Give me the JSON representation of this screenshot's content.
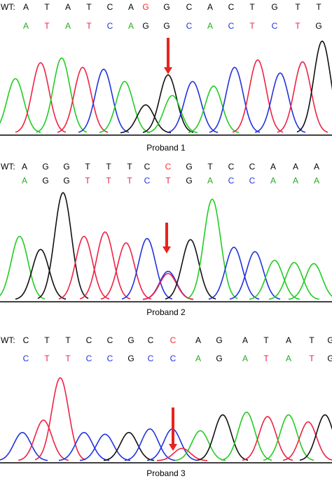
{
  "panels": [
    {
      "caption": "Proband 1",
      "wt_label": "WT:",
      "wt_bases": [
        {
          "b": "A",
          "c": "#000000"
        },
        {
          "b": "T",
          "c": "#000000"
        },
        {
          "b": "A",
          "c": "#000000"
        },
        {
          "b": "T",
          "c": "#000000"
        },
        {
          "b": "C",
          "c": "#000000"
        },
        {
          "b": "A",
          "c": "#000000"
        },
        {
          "b": "G",
          "c": "#ff2a2a"
        },
        {
          "b": "G",
          "c": "#000000"
        },
        {
          "b": "C",
          "c": "#000000"
        },
        {
          "b": "A",
          "c": "#000000"
        },
        {
          "b": "C",
          "c": "#000000"
        },
        {
          "b": "T",
          "c": "#000000"
        },
        {
          "b": "G",
          "c": "#000000"
        },
        {
          "b": "T",
          "c": "#000000"
        },
        {
          "b": "T",
          "c": "#000000"
        }
      ],
      "called_bases": [
        {
          "b": "A",
          "c": "#22aa22"
        },
        {
          "b": "T",
          "c": "#e8224a"
        },
        {
          "b": "A",
          "c": "#22aa22"
        },
        {
          "b": "T",
          "c": "#e8224a"
        },
        {
          "b": "C",
          "c": "#2233dd"
        },
        {
          "b": "A",
          "c": "#22aa22"
        },
        {
          "b": "G",
          "c": "#000000"
        },
        {
          "b": "G",
          "c": "#000000"
        },
        {
          "b": "C",
          "c": "#2233dd"
        },
        {
          "b": "A",
          "c": "#22aa22"
        },
        {
          "b": "C",
          "c": "#2233dd"
        },
        {
          "b": "T",
          "c": "#e8224a"
        },
        {
          "b": "C",
          "c": "#2233dd"
        },
        {
          "b": "T",
          "c": "#e8224a"
        },
        {
          "b": "G",
          "c": "#000000"
        }
      ]
    },
    {
      "caption": "Proband 2",
      "wt_label": "WT:",
      "wt_bases": [
        {
          "b": "A",
          "c": "#000000"
        },
        {
          "b": "G",
          "c": "#000000"
        },
        {
          "b": "G",
          "c": "#000000"
        },
        {
          "b": "T",
          "c": "#000000"
        },
        {
          "b": "T",
          "c": "#000000"
        },
        {
          "b": "T",
          "c": "#000000"
        },
        {
          "b": "C",
          "c": "#000000"
        },
        {
          "b": "C",
          "c": "#ff2a2a"
        },
        {
          "b": "G",
          "c": "#000000"
        },
        {
          "b": "T",
          "c": "#000000"
        },
        {
          "b": "C",
          "c": "#000000"
        },
        {
          "b": "C",
          "c": "#000000"
        },
        {
          "b": "A",
          "c": "#000000"
        },
        {
          "b": "A",
          "c": "#000000"
        },
        {
          "b": "A",
          "c": "#000000"
        }
      ],
      "called_bases": [
        {
          "b": "A",
          "c": "#22aa22"
        },
        {
          "b": "G",
          "c": "#000000"
        },
        {
          "b": "G",
          "c": "#000000"
        },
        {
          "b": "T",
          "c": "#e8224a"
        },
        {
          "b": "T",
          "c": "#e8224a"
        },
        {
          "b": "T",
          "c": "#e8224a"
        },
        {
          "b": "C",
          "c": "#2233dd"
        },
        {
          "b": "T",
          "c": "#e8224a"
        },
        {
          "b": "G",
          "c": "#000000"
        },
        {
          "b": "A",
          "c": "#22aa22"
        },
        {
          "b": "C",
          "c": "#2233dd"
        },
        {
          "b": "C",
          "c": "#2233dd"
        },
        {
          "b": "A",
          "c": "#22aa22"
        },
        {
          "b": "A",
          "c": "#22aa22"
        },
        {
          "b": "A",
          "c": "#22aa22"
        }
      ]
    },
    {
      "caption": "Proband 3",
      "wt_label": "WT:",
      "wt_bases": [
        {
          "b": "C",
          "c": "#000000"
        },
        {
          "b": "T",
          "c": "#000000"
        },
        {
          "b": "T",
          "c": "#000000"
        },
        {
          "b": "C",
          "c": "#000000"
        },
        {
          "b": "C",
          "c": "#000000"
        },
        {
          "b": "G",
          "c": "#000000"
        },
        {
          "b": "C",
          "c": "#000000"
        },
        {
          "b": "C",
          "c": "#ff2a2a"
        },
        {
          "b": "A",
          "c": "#000000"
        },
        {
          "b": "G",
          "c": "#000000"
        },
        {
          "b": "A",
          "c": "#000000"
        },
        {
          "b": "T",
          "c": "#000000"
        },
        {
          "b": "A",
          "c": "#000000"
        },
        {
          "b": "T",
          "c": "#000000"
        },
        {
          "b": "G",
          "c": "#000000"
        }
      ],
      "called_bases": [
        {
          "b": "C",
          "c": "#2233dd"
        },
        {
          "b": "T",
          "c": "#e8224a"
        },
        {
          "b": "T",
          "c": "#e8224a"
        },
        {
          "b": "C",
          "c": "#2233dd"
        },
        {
          "b": "C",
          "c": "#2233dd"
        },
        {
          "b": "G",
          "c": "#000000"
        },
        {
          "b": "C",
          "c": "#2233dd"
        },
        {
          "b": "C",
          "c": "#2233dd"
        },
        {
          "b": "A",
          "c": "#22aa22"
        },
        {
          "b": "G",
          "c": "#000000"
        },
        {
          "b": "A",
          "c": "#22aa22"
        },
        {
          "b": "T",
          "c": "#e8224a"
        },
        {
          "b": "A",
          "c": "#22aa22"
        },
        {
          "b": "T",
          "c": "#e8224a"
        },
        {
          "b": "G",
          "c": "#000000"
        }
      ]
    }
  ],
  "colors": {
    "A": "#22cc22",
    "C": "#2233dd",
    "G": "#111111",
    "T": "#ee2244",
    "mutation": "#ff2a2a",
    "arrow": "#e8231e"
  },
  "chart_data": [
    {
      "type": "line",
      "title": "Proband 1",
      "peaks": [
        {
          "base": "A",
          "height": 0.58
        },
        {
          "base": "T",
          "height": 0.75
        },
        {
          "base": "A",
          "height": 0.8
        },
        {
          "base": "T",
          "height": 0.7
        },
        {
          "base": "C",
          "height": 0.68
        },
        {
          "base": "A",
          "height": 0.55
        },
        {
          "base": "G",
          "height": 0.3
        },
        {
          "base": "G",
          "height": 0.62
        },
        {
          "base": "A",
          "height": 0.4
        },
        {
          "base": "C",
          "height": 0.55
        },
        {
          "base": "A",
          "height": 0.5
        },
        {
          "base": "C",
          "height": 0.7
        },
        {
          "base": "T",
          "height": 0.78
        },
        {
          "base": "C",
          "height": 0.64
        },
        {
          "base": "T",
          "height": 0.76
        },
        {
          "base": "G",
          "height": 0.98
        }
      ]
    },
    {
      "type": "line",
      "title": "Proband 2",
      "peaks": [
        {
          "base": "A",
          "height": 0.58
        },
        {
          "base": "G",
          "height": 0.46
        },
        {
          "base": "G",
          "height": 0.98
        },
        {
          "base": "T",
          "height": 0.58
        },
        {
          "base": "T",
          "height": 0.62
        },
        {
          "base": "T",
          "height": 0.52
        },
        {
          "base": "C",
          "height": 0.56
        },
        {
          "base": "C",
          "height": 0.26
        },
        {
          "base": "T",
          "height": 0.24
        },
        {
          "base": "G",
          "height": 0.55
        },
        {
          "base": "A",
          "height": 0.92
        },
        {
          "base": "C",
          "height": 0.48
        },
        {
          "base": "C",
          "height": 0.44
        },
        {
          "base": "A",
          "height": 0.36
        },
        {
          "base": "A",
          "height": 0.34
        },
        {
          "base": "A",
          "height": 0.33
        }
      ]
    },
    {
      "type": "line",
      "title": "Proband 3",
      "peaks": [
        {
          "base": "C",
          "height": 0.32
        },
        {
          "base": "T",
          "height": 0.46
        },
        {
          "base": "T",
          "height": 0.94
        },
        {
          "base": "C",
          "height": 0.32
        },
        {
          "base": "C",
          "height": 0.3
        },
        {
          "base": "G",
          "height": 0.32
        },
        {
          "base": "C",
          "height": 0.36
        },
        {
          "base": "C",
          "height": 0.36
        },
        {
          "base": "T",
          "height": 0.14
        },
        {
          "base": "A",
          "height": 0.34
        },
        {
          "base": "G",
          "height": 0.52
        },
        {
          "base": "A",
          "height": 0.55
        },
        {
          "base": "T",
          "height": 0.5
        },
        {
          "base": "A",
          "height": 0.52
        },
        {
          "base": "T",
          "height": 0.44
        },
        {
          "base": "G",
          "height": 0.52
        }
      ]
    }
  ]
}
